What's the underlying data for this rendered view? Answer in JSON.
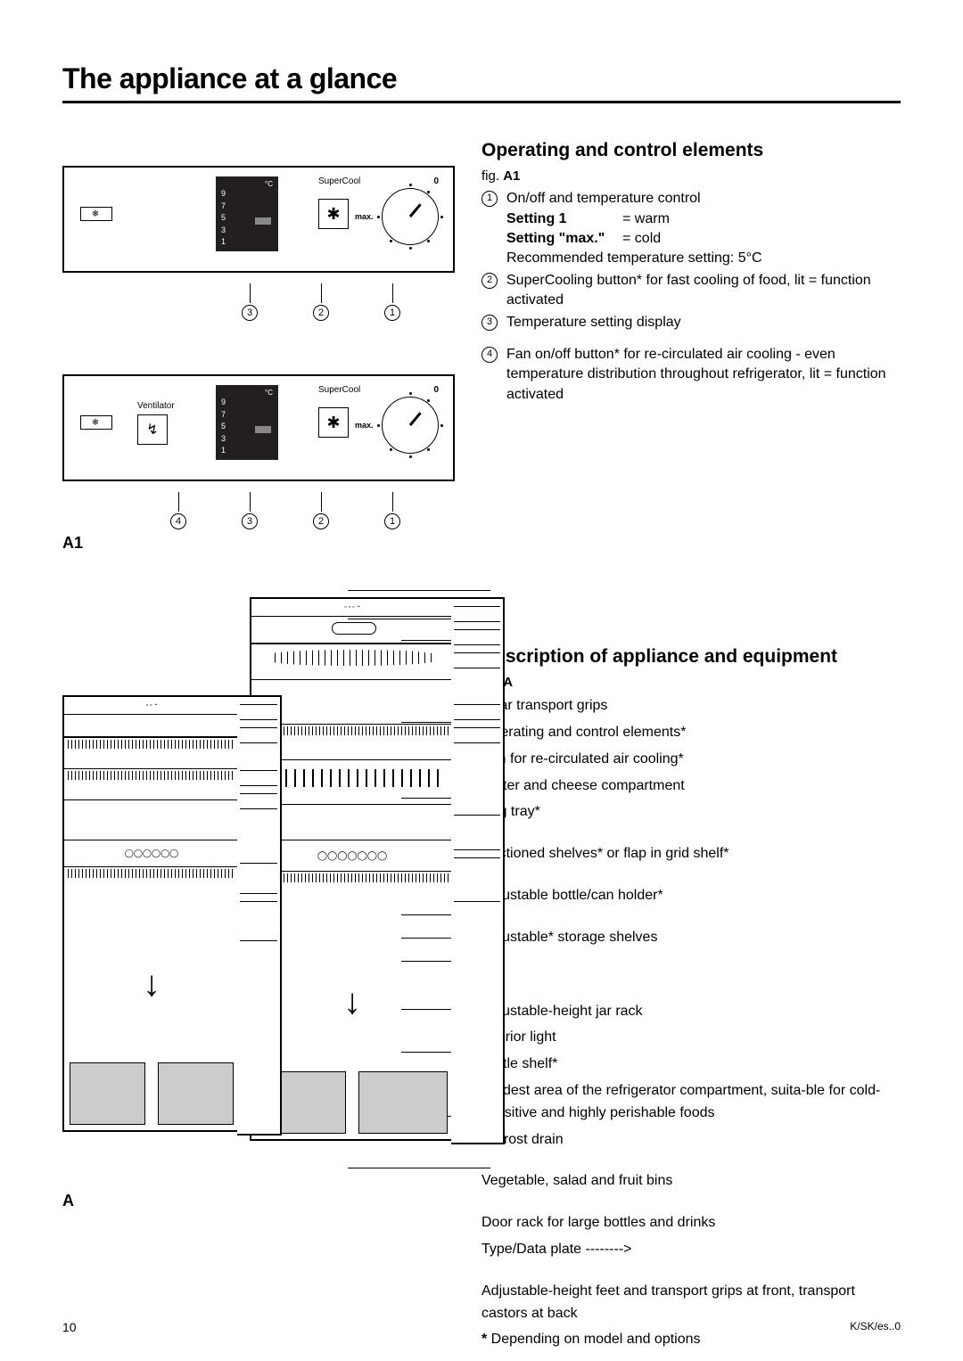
{
  "page": {
    "title": "The appliance at a glance",
    "number": "10",
    "ref": "K/SK/es..0"
  },
  "panels": {
    "fig_label_a1": "A1",
    "fig_label_a": "A",
    "temp_unit": "°C",
    "temp_scale": [
      "9",
      "7",
      "5",
      "3",
      "1"
    ],
    "supercool_label": "SuperCool",
    "ventilator_label": "Ventilator",
    "max_label": "max.",
    "zero_label": "0"
  },
  "section1": {
    "heading": "Operating and control elements",
    "fig_prefix": "fig. ",
    "fig_ref": "A1",
    "items": [
      {
        "num": "1",
        "text": "On/off and temperature control",
        "rows": [
          {
            "lbl": "Setting 1",
            "val": "=  warm"
          },
          {
            "lbl": "Setting \"max.\"",
            "val": "=  cold"
          }
        ],
        "tail": "Recommended temperature setting: 5°C"
      },
      {
        "num": "2",
        "text": "SuperCooling button* for fast cooling of food, lit = function activated"
      },
      {
        "num": "3",
        "text": "Temperature setting display"
      },
      {
        "num": "4",
        "text": "Fan on/off button* for re-circulated air cool­ing - even temperature distribution through­out refrigerator, lit = function activated",
        "gap_before": true
      }
    ]
  },
  "section2": {
    "heading": "Description of appliance and equipment",
    "fig_prefix": "fig. ",
    "fig_ref": "A",
    "items": [
      {
        "text": "Rear transport grips"
      },
      {
        "text": "Operating and control elements*"
      },
      {
        "text": "Fan for re-circulated air cooling*"
      },
      {
        "text": "Butter and cheese compartment"
      },
      {
        "text": "Egg tray*",
        "cls": "gap"
      },
      {
        "text": "Sectioned shelves* or flap in grid shelf*",
        "cls": "gap"
      },
      {
        "text": "Adjustable bottle/can holder*",
        "cls": "gap"
      },
      {
        "text": "Adjustable* storage shelves",
        "cls": "gap-lg"
      },
      {
        "text": "Adjustable-height jar rack"
      },
      {
        "text": "Interior light"
      },
      {
        "text": "Bottle shelf*"
      },
      {
        "text": "Coldest area of the refrigerator compartment, suita-ble for cold-sensitive and highly perish­able foods"
      },
      {
        "text": "Defrost drain",
        "cls": "gap"
      },
      {
        "text": "Vegetable, salad and fruit bins",
        "cls": "gap"
      },
      {
        "text": "Door rack for large bottles and drinks"
      },
      {
        "text": "Type/Data plate  -------->",
        "cls": "gap"
      },
      {
        "text": "Adjustable-height feet and transport grips at front, transport castors at back"
      }
    ],
    "footnote_star": "*",
    "footnote": " Depending on model and options"
  }
}
